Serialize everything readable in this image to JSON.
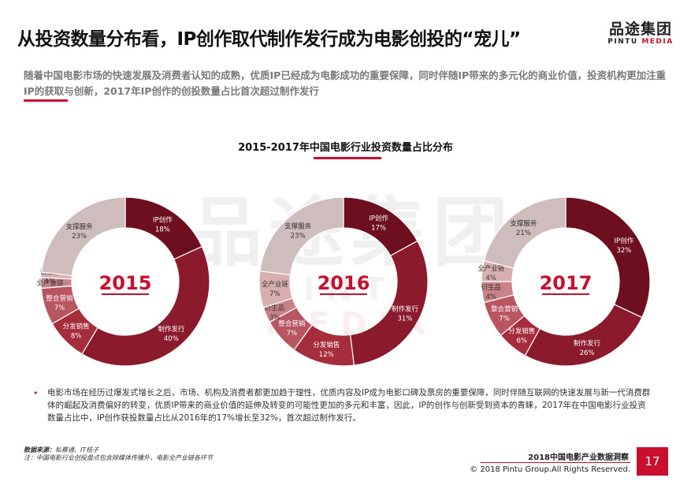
{
  "header": {
    "title": "从投资数量分布看，IP创作取代制作发行成为电影创投的“宠儿”",
    "subtitle": "随着中国电影市场的快速发展及消费者认知的成熟，优质IP已经成为电影成功的重要保障，同时伴随IP带来的多元化的商业价值，投资机构更加注重IP的获取与创新，2017年IP创作的创投数量占比首次超过制作发行"
  },
  "logo": {
    "cn": "品途集团",
    "en_1": "PINTU ",
    "en_2": "MEDIA"
  },
  "watermark": {
    "cn": "品途集团",
    "en_1": "PINTU ",
    "en_2": "MEDIA"
  },
  "chart_title": "2015-2017年中国电影行业投资数量占比分布",
  "colors": {
    "accent": "#c8102e",
    "slices": [
      "#6e0f1f",
      "#8a1a2c",
      "#a52d3c",
      "#b95560",
      "#c98388",
      "#d9aeb0",
      "#cfbcbd"
    ]
  },
  "chart_data": [
    {
      "type": "pie",
      "year": "2015",
      "slices": [
        {
          "label": "IP创作",
          "value": 18,
          "text": "18%"
        },
        {
          "label": "制作发行",
          "value": 40,
          "text": "40%"
        },
        {
          "label": "分发销售",
          "value": 8,
          "text": "8%"
        },
        {
          "label": "整合营销",
          "value": 7,
          "text": "7%"
        },
        {
          "label": "全产业链",
          "value": 2,
          "text": ""
        },
        {
          "label": "衍生品",
          "value": 1,
          "text": "1%"
        },
        {
          "label": "支撑服务",
          "value": 23,
          "text": "23%"
        }
      ]
    },
    {
      "type": "pie",
      "year": "2016",
      "slices": [
        {
          "label": "IP创作",
          "value": 17,
          "text": "17%"
        },
        {
          "label": "制作发行",
          "value": 31,
          "text": "31%"
        },
        {
          "label": "分发销售",
          "value": 12,
          "text": "12%"
        },
        {
          "label": "整合营销",
          "value": 7,
          "text": "7%"
        },
        {
          "label": "衍生品",
          "value": 3,
          "text": "3%"
        },
        {
          "label": "全产业链",
          "value": 7,
          "text": "7%"
        },
        {
          "label": "支撑服务",
          "value": 23,
          "text": "23%"
        }
      ]
    },
    {
      "type": "pie",
      "year": "2017",
      "slices": [
        {
          "label": "IP创作",
          "value": 32,
          "text": "32%"
        },
        {
          "label": "制作发行",
          "value": 26,
          "text": "26%"
        },
        {
          "label": "分发销售",
          "value": 6,
          "text": "6%"
        },
        {
          "label": "整合营销",
          "value": 7,
          "text": "7%"
        },
        {
          "label": "衍生品",
          "value": 4,
          "text": "4%"
        },
        {
          "label": "全产业链",
          "value": 4,
          "text": "4%"
        },
        {
          "label": "支撑服务",
          "value": 21,
          "text": "21%"
        }
      ]
    }
  ],
  "body_text": "电影市场在经历过爆发式增长之后，市场、机构及消费者都更加趋于理性，优质内容及IP成为电影口碑及票房的重要保障，同时伴随互联网的快速发展与新一代消费群体的崛起及消费偏好的转变，优质IP带来的商业价值的延伸及转变的可能性更加的多元和丰富，因此，IP的创作与创新受到资本的青睐，2017年在中国电影行业投资数量占比中，IP创作获投数量占比从2016年的17%增长至32%，首次超过制作发行。",
  "source": {
    "line1_label": "数据来源：",
    "line1_text": "私募通、IT桔子",
    "line2": "注：中国电影行业创投盘点包含除媒体传播外，电影全产业链各环节"
  },
  "footer": {
    "report": "2018中国电影产业数据洞察",
    "copyright": "© 2018 Pintu Group.All Rights Reserved.",
    "page": "17"
  }
}
